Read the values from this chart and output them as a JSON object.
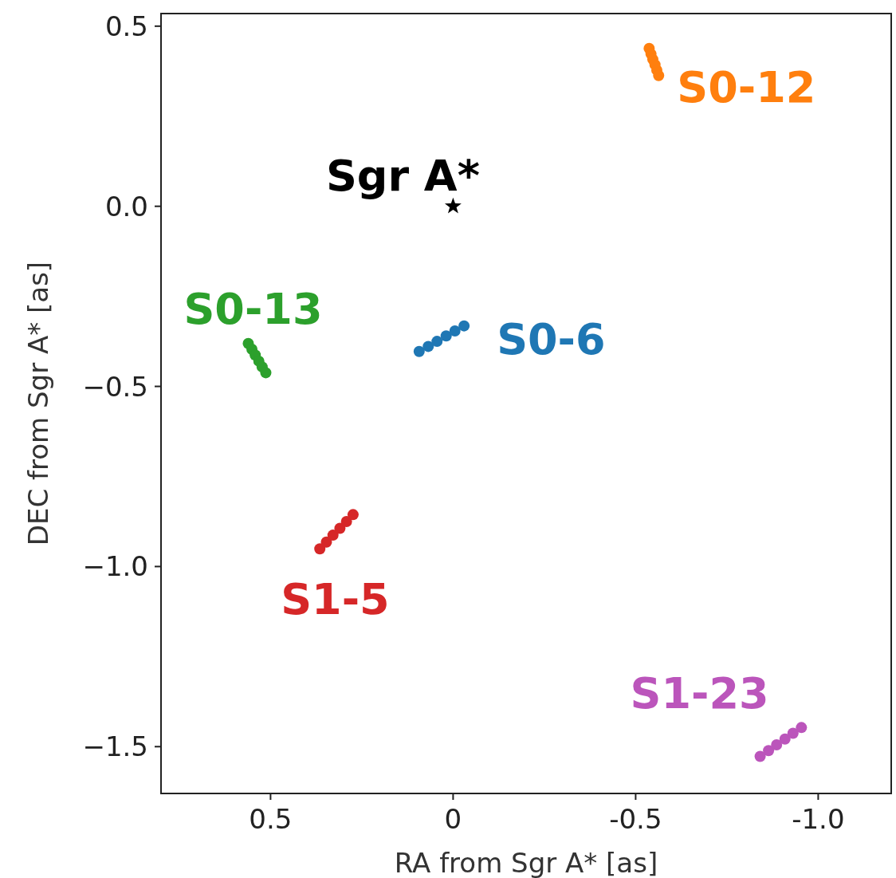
{
  "chart_data": {
    "type": "scatter",
    "xlabel": "RA from Sgr A* [as]",
    "ylabel": "DEC from Sgr A* [as]",
    "xlim": [
      0.8,
      -1.2
    ],
    "ylim": [
      -1.63,
      0.535
    ],
    "xticks": [
      0.5,
      {
        "value": 0,
        "label": "0"
      },
      -0.5,
      {
        "value": -1,
        "label": "-1.0"
      }
    ],
    "yticks": [
      0.5,
      {
        "value": 0,
        "label": "0.0"
      },
      {
        "value": -0.5,
        "label": "−0.5"
      },
      {
        "value": -1,
        "label": "−1.0"
      },
      {
        "value": -1.5,
        "label": "−1.5"
      }
    ],
    "marker": "circle",
    "series": [
      {
        "name": "S0-12",
        "color": "#ff7f0e",
        "x": [
          -0.537,
          -0.542,
          -0.547,
          -0.553,
          -0.558,
          -0.563
        ],
        "values": [
          0.438,
          0.423,
          0.408,
          0.393,
          0.378,
          0.363
        ]
      },
      {
        "name": "Sgr A*",
        "color": "#000000",
        "marker": "star",
        "x": [
          0
        ],
        "values": [
          0
        ]
      },
      {
        "name": "S0-13",
        "color": "#2ca02c",
        "x": [
          0.561,
          0.551,
          0.542,
          0.532,
          0.523,
          0.513
        ],
        "values": [
          -0.381,
          -0.397,
          -0.413,
          -0.43,
          -0.446,
          -0.462
        ]
      },
      {
        "name": "S0-6",
        "color": "#1f77b4",
        "x": [
          0.093,
          0.068,
          0.044,
          0.019,
          -0.005,
          -0.03
        ],
        "values": [
          -0.403,
          -0.389,
          -0.375,
          -0.36,
          -0.346,
          -0.332
        ]
      },
      {
        "name": "S1-5",
        "color": "#d62728",
        "x": [
          0.365,
          0.347,
          0.329,
          0.31,
          0.292,
          0.274
        ],
        "values": [
          -0.951,
          -0.932,
          -0.913,
          -0.894,
          -0.875,
          -0.856
        ]
      },
      {
        "name": "S1-23",
        "color": "#bb55bb",
        "x": [
          -0.841,
          -0.864,
          -0.886,
          -0.909,
          -0.931,
          -0.954
        ],
        "values": [
          -1.527,
          -1.511,
          -1.495,
          -1.479,
          -1.463,
          -1.447
        ]
      }
    ]
  }
}
